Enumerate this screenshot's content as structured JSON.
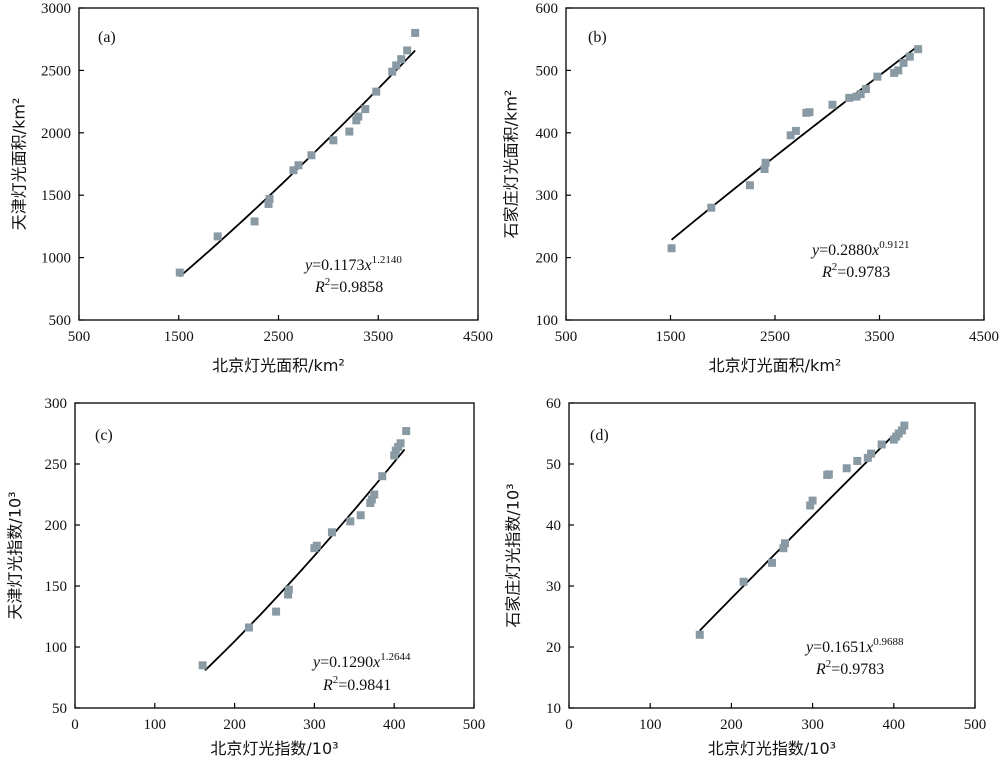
{
  "chart_data": [
    {
      "type": "scatter",
      "panel_label": "(a)",
      "xlabel": "北京灯光面积/km²",
      "ylabel": "天津灯光面积/km²",
      "xlim": [
        500,
        4500
      ],
      "ylim": [
        500,
        3000
      ],
      "xticks": [
        "500",
        "1500",
        "2500",
        "3500",
        "4500"
      ],
      "yticks": [
        "500",
        "1000",
        "1500",
        "2000",
        "2500",
        "3000"
      ],
      "x": [
        1510,
        1890,
        2260,
        2400,
        2410,
        2650,
        2700,
        2830,
        3050,
        3210,
        3280,
        3300,
        3370,
        3480,
        3640,
        3680,
        3730,
        3790,
        3870
      ],
      "y": [
        880,
        1170,
        1290,
        1430,
        1470,
        1700,
        1740,
        1820,
        1940,
        2010,
        2100,
        2130,
        2190,
        2330,
        2490,
        2540,
        2590,
        2660,
        2800
      ],
      "fit": {
        "a": 0.1173,
        "b": 1.214,
        "x_range": [
          1510,
          3870
        ]
      },
      "equation": {
        "y": "y",
        "eq": "=0.1173",
        "x": "x",
        "exp": "1.2140",
        "r": "R",
        "r_exp": "2",
        "r_val": "=0.9858"
      }
    },
    {
      "type": "scatter",
      "panel_label": "(b)",
      "xlabel": "北京灯光面积/km²",
      "ylabel": "石家庄灯光面积/km²",
      "xlim": [
        500,
        4500
      ],
      "ylim": [
        100,
        600
      ],
      "xticks": [
        "500",
        "1500",
        "2500",
        "3500",
        "4500"
      ],
      "yticks": [
        "100",
        "200",
        "300",
        "400",
        "500",
        "600"
      ],
      "x": [
        1510,
        1890,
        2260,
        2400,
        2410,
        2650,
        2700,
        2800,
        2830,
        3050,
        3210,
        3280,
        3320,
        3370,
        3480,
        3640,
        3680,
        3730,
        3790,
        3870
      ],
      "y": [
        215,
        280,
        316,
        342,
        352,
        396,
        403,
        432,
        433,
        445,
        456,
        458,
        462,
        470,
        490,
        496,
        500,
        512,
        522,
        534
      ],
      "fit": {
        "a": 0.288,
        "b": 0.9121,
        "x_range": [
          1510,
          3870
        ]
      },
      "equation": {
        "y": "y",
        "eq": "=0.2880",
        "x": "x",
        "exp": "0.9121",
        "r": "R",
        "r_exp": "2",
        "r_val": "=0.9783"
      }
    },
    {
      "type": "scatter",
      "panel_label": "(c)",
      "xlabel": "北京灯光指数/10³",
      "ylabel": "天津灯光指数/10³",
      "xlim": [
        0,
        500
      ],
      "ylim": [
        50,
        300
      ],
      "xticks": [
        "0",
        "100",
        "200",
        "300",
        "400",
        "500"
      ],
      "yticks": [
        "50",
        "100",
        "150",
        "200",
        "250",
        "300"
      ],
      "x": [
        160,
        218,
        252,
        267,
        268,
        300,
        303,
        322,
        345,
        358,
        370,
        372,
        375,
        385,
        400,
        402,
        405,
        408,
        415
      ],
      "y": [
        85,
        116,
        129,
        143,
        147,
        181,
        183,
        194,
        203,
        208,
        218,
        221,
        225,
        240,
        257,
        261,
        264,
        267,
        277
      ],
      "fit": {
        "a": 0.129,
        "b": 1.2644,
        "x_range": [
          163,
          413
        ]
      },
      "equation": {
        "y": "y",
        "eq": "=0.1290",
        "x": "x",
        "exp": "1.2644",
        "r": "R",
        "r_exp": "2",
        "r_val": "=0.9841"
      }
    },
    {
      "type": "scatter",
      "panel_label": "(d)",
      "xlabel": "北京灯光指数/10³",
      "ylabel": "石家庄灯光指数/10³",
      "xlim": [
        0,
        500
      ],
      "ylim": [
        10,
        60
      ],
      "xticks": [
        "0",
        "100",
        "200",
        "300",
        "400",
        "500"
      ],
      "yticks": [
        "10",
        "20",
        "30",
        "40",
        "50",
        "60"
      ],
      "x": [
        161,
        215,
        250,
        264,
        266,
        297,
        300,
        318,
        320,
        342,
        355,
        368,
        372,
        385,
        400,
        403,
        406,
        410,
        413
      ],
      "y": [
        22,
        30.7,
        33.8,
        36.2,
        37,
        43.2,
        44,
        48.2,
        48.3,
        49.3,
        50.5,
        51,
        51.7,
        53.2,
        54,
        54.5,
        55,
        55.5,
        56.3
      ],
      "fit": {
        "a": 0.1651,
        "b": 0.9688,
        "x_range": [
          161,
          413
        ]
      },
      "equation": {
        "y": "y",
        "eq": "=0.1651",
        "x": "x",
        "exp": "0.9688",
        "r": "R",
        "r_exp": "2",
        "r_val": "=0.9783"
      }
    }
  ],
  "colors": {
    "marker": "#8a9aa5",
    "fit_line": "#000000",
    "axis": "#000000"
  }
}
